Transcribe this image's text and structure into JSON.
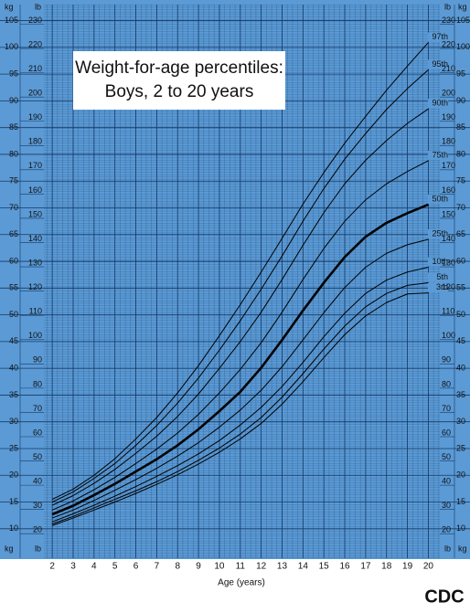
{
  "chart_data": {
    "type": "line",
    "title": "Weight-for-age percentiles:",
    "subtitle": "Boys, 2 to 20 years",
    "x_label": "Age (years)",
    "y_unit": "kg",
    "y2_unit": "lb",
    "logo": "CDC",
    "x": [
      2,
      3,
      4,
      5,
      6,
      7,
      8,
      9,
      10,
      11,
      12,
      13,
      14,
      15,
      16,
      17,
      18,
      19,
      20
    ],
    "xlim": [
      1.6,
      20.55
    ],
    "xticks": [
      2,
      3,
      4,
      5,
      6,
      7,
      8,
      9,
      10,
      11,
      12,
      13,
      14,
      15,
      16,
      17,
      18,
      19,
      20
    ],
    "ylim": [
      4.5,
      108
    ],
    "yticks": [
      10,
      15,
      20,
      25,
      30,
      35,
      40,
      45,
      50,
      55,
      60,
      65,
      70,
      75,
      80,
      85,
      90,
      95,
      100,
      105
    ],
    "y2lim": [
      9.92,
      238.1
    ],
    "y2ticks": [
      20,
      30,
      40,
      50,
      60,
      70,
      80,
      90,
      100,
      110,
      120,
      130,
      140,
      150,
      160,
      170,
      180,
      190,
      200,
      210,
      220,
      230
    ],
    "grid": true,
    "background": "#5b9ad5",
    "series": [
      {
        "name": "97th",
        "color": "#000000",
        "width": 1,
        "values": [
          15.5,
          17.4,
          20.0,
          23.1,
          26.8,
          30.8,
          35.4,
          40.5,
          46.1,
          51.9,
          58.0,
          64.3,
          70.7,
          76.6,
          82.1,
          87.1,
          92.0,
          96.5,
          100.9
        ]
      },
      {
        "name": "95th",
        "color": "#000000",
        "width": 1,
        "values": [
          15.0,
          16.9,
          19.4,
          22.2,
          25.6,
          29.3,
          33.5,
          38.2,
          43.4,
          48.9,
          54.8,
          61.0,
          67.5,
          73.6,
          79.1,
          83.9,
          88.4,
          92.3,
          95.8
        ]
      },
      {
        "name": "90th",
        "color": "#000000",
        "width": 1,
        "values": [
          14.4,
          16.2,
          18.5,
          21.1,
          24.1,
          27.3,
          31.0,
          35.2,
          40.0,
          45.0,
          50.5,
          56.6,
          63.0,
          69.1,
          74.5,
          78.9,
          82.6,
          85.8,
          88.5
        ]
      },
      {
        "name": "75th",
        "color": "#000000",
        "width": 1,
        "values": [
          13.5,
          15.2,
          17.3,
          19.6,
          22.2,
          24.9,
          27.9,
          31.4,
          35.4,
          39.8,
          44.8,
          50.5,
          56.6,
          62.4,
          67.5,
          71.5,
          74.5,
          76.8,
          78.8
        ]
      },
      {
        "name": "50th",
        "color": "#000000",
        "width": 2.6,
        "values": [
          12.7,
          14.3,
          16.3,
          18.4,
          20.7,
          23.0,
          25.6,
          28.6,
          32.0,
          35.6,
          40.1,
          45.3,
          50.8,
          56.0,
          60.8,
          64.6,
          67.2,
          69.0,
          70.6
        ]
      },
      {
        "name": "25th",
        "color": "#000000",
        "width": 1,
        "values": [
          12.0,
          13.5,
          15.3,
          17.2,
          19.2,
          21.3,
          23.6,
          26.1,
          29.0,
          32.2,
          35.9,
          40.3,
          45.3,
          50.4,
          55.1,
          58.9,
          61.5,
          63.1,
          64.1
        ]
      },
      {
        "name": "10th",
        "color": "#000000",
        "width": 1,
        "values": [
          11.3,
          12.8,
          14.4,
          16.1,
          17.9,
          19.8,
          21.8,
          24.0,
          26.5,
          29.4,
          32.7,
          36.6,
          41.1,
          45.9,
          50.3,
          54.0,
          56.5,
          58.0,
          58.9
        ]
      },
      {
        "name": "5th",
        "color": "#000000",
        "width": 1,
        "values": [
          10.9,
          12.3,
          13.9,
          15.5,
          17.1,
          18.8,
          20.7,
          22.8,
          25.1,
          27.7,
          30.8,
          34.6,
          39.0,
          43.6,
          47.9,
          51.5,
          54.0,
          55.5,
          56.0
        ]
      },
      {
        "name": "3rd",
        "color": "#000000",
        "width": 1,
        "values": [
          10.6,
          12.0,
          13.5,
          15.0,
          16.6,
          18.3,
          20.1,
          22.1,
          24.3,
          26.8,
          29.7,
          33.3,
          37.5,
          42.0,
          46.3,
          49.8,
          52.3,
          53.9,
          54.1
        ]
      }
    ]
  }
}
